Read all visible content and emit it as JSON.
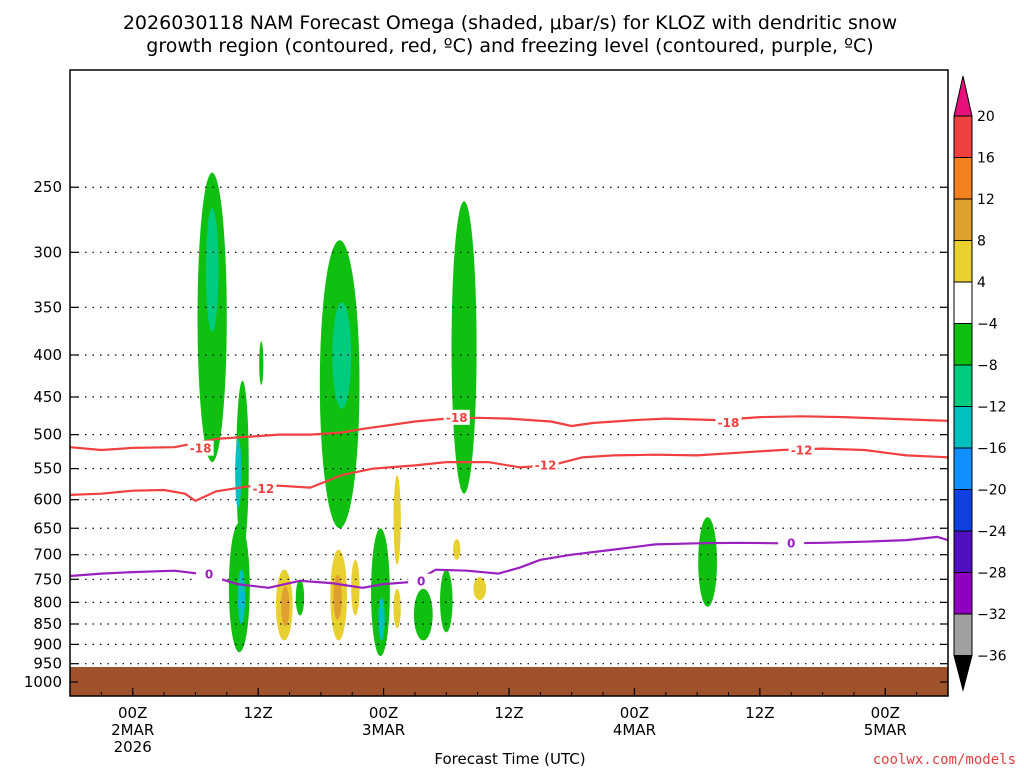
{
  "chart_data": {
    "type": "time-height",
    "title_line1": "2026030118 NAM Forecast Omega (shaded, μbar/s) for KLOZ with dendritic snow",
    "title_line2": "growth region (contoured, red, ºC) and freezing level (contoured, purple, ºC)",
    "xlabel": "Forecast Time (UTC)",
    "credit": "coolwx.com/models",
    "x_unit": "hours since 2026-03-01 18Z",
    "xlim": [
      0,
      84
    ],
    "ylim_hpa": [
      1040,
      180
    ],
    "pressure_ticks": [
      250,
      300,
      350,
      400,
      450,
      500,
      550,
      600,
      650,
      700,
      750,
      800,
      850,
      900,
      950,
      1000
    ],
    "time_ticks": [
      {
        "hour": 6,
        "l1": "00Z",
        "l2": "2MAR",
        "l3": "2026"
      },
      {
        "hour": 18,
        "l1": "12Z",
        "l2": "",
        "l3": ""
      },
      {
        "hour": 30,
        "l1": "00Z",
        "l2": "3MAR",
        "l3": ""
      },
      {
        "hour": 42,
        "l1": "12Z",
        "l2": "",
        "l3": ""
      },
      {
        "hour": 54,
        "l1": "00Z",
        "l2": "4MAR",
        "l3": ""
      },
      {
        "hour": 66,
        "l1": "12Z",
        "l2": "",
        "l3": ""
      },
      {
        "hour": 78,
        "l1": "00Z",
        "l2": "5MAR",
        "l3": ""
      }
    ],
    "colorbar": {
      "labels": [
        "20",
        "16",
        "12",
        "8",
        "4",
        "−4",
        "−8",
        "−12",
        "−16",
        "−20",
        "−24",
        "−28",
        "−32",
        "−36"
      ],
      "colors": [
        "#f04040",
        "#f08020",
        "#e0a030",
        "#e8d030",
        "#ffffff",
        "#10c010",
        "#00cc80",
        "#00c0c0",
        "#1090ff",
        "#1040e0",
        "#5010c0",
        "#9000c0",
        "#a0a0a0"
      ],
      "top_triangle_color": "#e8107a",
      "bottom_triangle_color": "#000000"
    },
    "ground_color": "#a0522d",
    "omega_regions": [
      {
        "value": -8,
        "color": "#10c010",
        "center": [
          13.6,
          390
        ],
        "half_width": 1.4,
        "half_depth": 150
      },
      {
        "value": -12,
        "color": "#00cc80",
        "center": [
          13.6,
          320
        ],
        "half_width": 0.6,
        "half_depth": 55
      },
      {
        "value": -8,
        "color": "#10c010",
        "center": [
          16.5,
          560
        ],
        "half_width": 0.6,
        "half_depth": 130
      },
      {
        "value": -12,
        "color": "#00c0c0",
        "center": [
          16.1,
          560
        ],
        "half_width": 0.3,
        "half_depth": 55
      },
      {
        "value": -8,
        "color": "#10c010",
        "center": [
          18.3,
          410
        ],
        "half_width": 0.2,
        "half_depth": 25
      },
      {
        "value": -8,
        "color": "#10c010",
        "center": [
          25.8,
          470
        ],
        "half_width": 1.9,
        "half_depth": 180
      },
      {
        "value": -12,
        "color": "#00cc80",
        "center": [
          26.0,
          405
        ],
        "half_width": 0.9,
        "half_depth": 60
      },
      {
        "value": -8,
        "color": "#10c010",
        "center": [
          37.7,
          425
        ],
        "half_width": 1.2,
        "half_depth": 165
      },
      {
        "value": -8,
        "color": "#10c010",
        "center": [
          16.2,
          780
        ],
        "half_width": 1.0,
        "half_depth": 140
      },
      {
        "value": -12,
        "color": "#00c0c0",
        "center": [
          16.4,
          790
        ],
        "half_width": 0.35,
        "half_depth": 60
      },
      {
        "value": -8,
        "color": "#10c010",
        "center": [
          22.0,
          790
        ],
        "half_width": 0.4,
        "half_depth": 40
      },
      {
        "value": -8,
        "color": "#10c010",
        "center": [
          29.7,
          790
        ],
        "half_width": 0.9,
        "half_depth": 140
      },
      {
        "value": -12,
        "color": "#00c0c0",
        "center": [
          29.8,
          840
        ],
        "half_width": 0.3,
        "half_depth": 50
      },
      {
        "value": -8,
        "color": "#10c010",
        "center": [
          33.8,
          830
        ],
        "half_width": 0.9,
        "half_depth": 60
      },
      {
        "value": -8,
        "color": "#10c010",
        "center": [
          36.0,
          800
        ],
        "half_width": 0.6,
        "half_depth": 70
      },
      {
        "value": -8,
        "color": "#10c010",
        "center": [
          61.0,
          720
        ],
        "half_width": 0.9,
        "half_depth": 90
      },
      {
        "value": 8,
        "color": "#e8d030",
        "center": [
          20.5,
          810
        ],
        "half_width": 0.8,
        "half_depth": 80
      },
      {
        "value": 12,
        "color": "#e0a030",
        "center": [
          20.6,
          810
        ],
        "half_width": 0.4,
        "half_depth": 45
      },
      {
        "value": 8,
        "color": "#e8d030",
        "center": [
          25.7,
          790
        ],
        "half_width": 0.8,
        "half_depth": 100
      },
      {
        "value": 12,
        "color": "#e0a030",
        "center": [
          25.6,
          790
        ],
        "half_width": 0.4,
        "half_depth": 50
      },
      {
        "value": 4,
        "color": "#e8d030",
        "center": [
          27.3,
          770
        ],
        "half_width": 0.4,
        "half_depth": 60
      },
      {
        "value": 4,
        "color": "#e8d030",
        "center": [
          31.3,
          640
        ],
        "half_width": 0.35,
        "half_depth": 80
      },
      {
        "value": 4,
        "color": "#e8d030",
        "center": [
          31.3,
          815
        ],
        "half_width": 0.35,
        "half_depth": 45
      },
      {
        "value": 4,
        "color": "#e8d030",
        "center": [
          37.0,
          690
        ],
        "half_width": 0.35,
        "half_depth": 20
      },
      {
        "value": 4,
        "color": "#e8d030",
        "center": [
          39.2,
          770
        ],
        "half_width": 0.6,
        "half_depth": 25
      }
    ],
    "contours": [
      {
        "name": "-18C",
        "color": "#f04040",
        "label": "-18",
        "points": [
          [
            0,
            518
          ],
          [
            3,
            522
          ],
          [
            6,
            519
          ],
          [
            10,
            518
          ],
          [
            12,
            512
          ],
          [
            14,
            506
          ],
          [
            17,
            503
          ],
          [
            20,
            500
          ],
          [
            23,
            500
          ],
          [
            26,
            497
          ],
          [
            28,
            492
          ],
          [
            31,
            486
          ],
          [
            33,
            482
          ],
          [
            36,
            478
          ],
          [
            39,
            477
          ],
          [
            42,
            478
          ],
          [
            46,
            482
          ],
          [
            48,
            488
          ],
          [
            50,
            484
          ],
          [
            54,
            480
          ],
          [
            57,
            478
          ],
          [
            62,
            480
          ],
          [
            66,
            476
          ],
          [
            70,
            475
          ],
          [
            74,
            476
          ],
          [
            78,
            478
          ],
          [
            82,
            480
          ],
          [
            84,
            481
          ]
        ],
        "labels_at": [
          [
            12.5,
            520
          ],
          [
            37,
            477
          ],
          [
            63,
            484
          ]
        ]
      },
      {
        "name": "-12C",
        "color": "#f04040",
        "label": "-12",
        "points": [
          [
            0,
            592
          ],
          [
            3,
            590
          ],
          [
            6,
            585
          ],
          [
            9,
            584
          ],
          [
            11,
            590
          ],
          [
            12,
            602
          ],
          [
            14,
            586
          ],
          [
            17,
            578
          ],
          [
            20,
            577
          ],
          [
            23,
            580
          ],
          [
            26,
            560
          ],
          [
            29,
            550
          ],
          [
            33,
            545
          ],
          [
            36,
            540
          ],
          [
            40,
            540
          ],
          [
            43,
            548
          ],
          [
            46,
            545
          ],
          [
            49,
            533
          ],
          [
            52,
            530
          ],
          [
            56,
            529
          ],
          [
            60,
            530
          ],
          [
            64,
            526
          ],
          [
            68,
            522
          ],
          [
            72,
            520
          ],
          [
            76,
            522
          ],
          [
            80,
            530
          ],
          [
            83,
            532
          ],
          [
            84,
            533
          ]
        ],
        "labels_at": [
          [
            18.5,
            582
          ],
          [
            45.5,
            545
          ],
          [
            70,
            523
          ]
        ]
      },
      {
        "name": "0C",
        "color": "#9a20c0",
        "label": "0",
        "points": [
          [
            0,
            743
          ],
          [
            3,
            738
          ],
          [
            6,
            735
          ],
          [
            10,
            732
          ],
          [
            13,
            740
          ],
          [
            16,
            760
          ],
          [
            19,
            768
          ],
          [
            22,
            753
          ],
          [
            25,
            758
          ],
          [
            28,
            768
          ],
          [
            30,
            760
          ],
          [
            33,
            755
          ],
          [
            35,
            730
          ],
          [
            38,
            732
          ],
          [
            41,
            738
          ],
          [
            43,
            726
          ],
          [
            45,
            710
          ],
          [
            48,
            700
          ],
          [
            52,
            690
          ],
          [
            56,
            680
          ],
          [
            60,
            678
          ],
          [
            64,
            677
          ],
          [
            68,
            678
          ],
          [
            72,
            677
          ],
          [
            76,
            675
          ],
          [
            80,
            672
          ],
          [
            83,
            666
          ],
          [
            84,
            672
          ]
        ],
        "labels_at": [
          [
            13.3,
            740
          ],
          [
            33.6,
            755
          ],
          [
            69,
            678
          ]
        ]
      }
    ]
  }
}
